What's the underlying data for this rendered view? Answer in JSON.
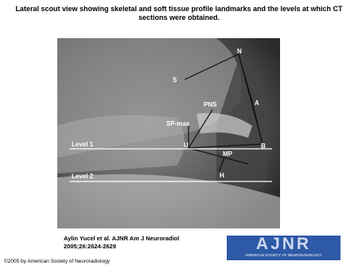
{
  "slide": {
    "title": "Lateral scout view showing skeletal and soft tissue profile landmarks and the levels at which CT sections were obtained.",
    "image_labels": [
      "S",
      "N",
      "PNS",
      "A",
      "SP-max",
      "U",
      "B",
      "MP",
      "H",
      "Level 1",
      "Level 2"
    ],
    "citation": "Aylin Yucel et al. AJNR Am J Neuroradiol 2005;26:2624-2629",
    "logo": {
      "title": "AJNR",
      "subtitle": "AMERICAN SOCIETY OF NEURORADIOLOGY"
    },
    "copyright": "©2005 by American Society of Neuroradiology"
  }
}
